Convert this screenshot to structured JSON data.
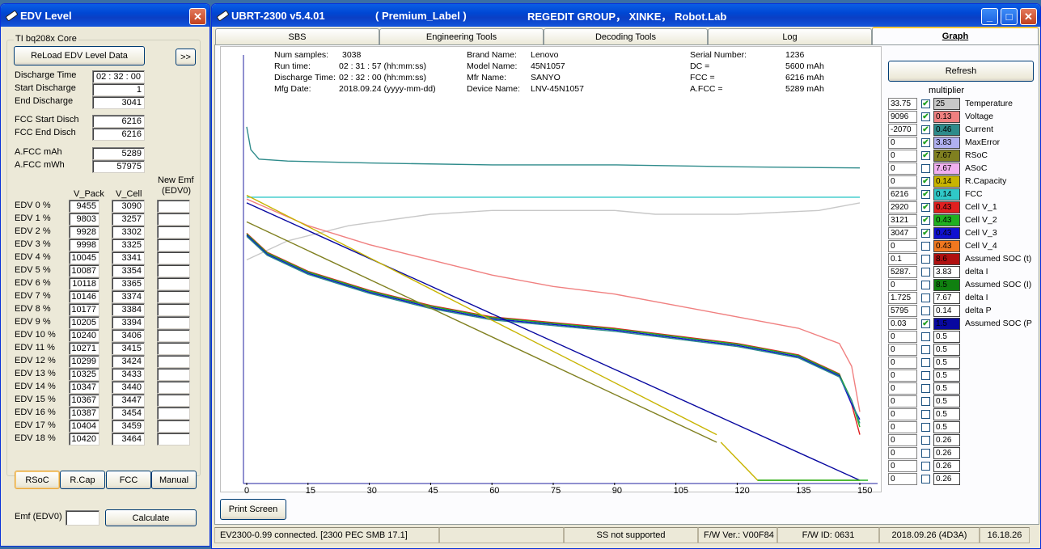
{
  "edv_window": {
    "title": "EDV Level",
    "group_title": "TI bq208x Core",
    "reload_button": "ReLoad EDV Level Data",
    "more_button": ">>",
    "fields": [
      {
        "label": "Discharge Time",
        "value": "02 : 32 : 00"
      },
      {
        "label": "Start Discharge",
        "value": "1"
      },
      {
        "label": "End  Discharge",
        "value": "3041"
      },
      {
        "label": "FCC Start Disch",
        "value": "6216"
      },
      {
        "label": "FCC End  Disch",
        "value": "6216"
      },
      {
        "label": "A.FCC mAh",
        "value": "5289"
      },
      {
        "label": "A.FCC mWh",
        "value": "57975"
      }
    ],
    "col_vpack": "V_Pack",
    "col_vcell": "V_Cell",
    "col_newemf": "New  Emf",
    "col_newemf2": "(EDV0)",
    "edv_rows": [
      {
        "label": "EDV   0 %",
        "vpack": "9455",
        "vcell": "3090"
      },
      {
        "label": "EDV   1 %",
        "vpack": "9803",
        "vcell": "3257"
      },
      {
        "label": "EDV   2 %",
        "vpack": "9928",
        "vcell": "3302"
      },
      {
        "label": "EDV   3 %",
        "vpack": "9998",
        "vcell": "3325"
      },
      {
        "label": "EDV   4 %",
        "vpack": "10045",
        "vcell": "3341"
      },
      {
        "label": "EDV   5 %",
        "vpack": "10087",
        "vcell": "3354"
      },
      {
        "label": "EDV   6 %",
        "vpack": "10118",
        "vcell": "3365"
      },
      {
        "label": "EDV   7 %",
        "vpack": "10146",
        "vcell": "3374"
      },
      {
        "label": "EDV   8 %",
        "vpack": "10177",
        "vcell": "3384"
      },
      {
        "label": "EDV   9 %",
        "vpack": "10205",
        "vcell": "3394"
      },
      {
        "label": "EDV 10 %",
        "vpack": "10240",
        "vcell": "3406"
      },
      {
        "label": "EDV 11 %",
        "vpack": "10271",
        "vcell": "3415"
      },
      {
        "label": "EDV 12 %",
        "vpack": "10299",
        "vcell": "3424"
      },
      {
        "label": "EDV 13 %",
        "vpack": "10325",
        "vcell": "3433"
      },
      {
        "label": "EDV 14 %",
        "vpack": "10347",
        "vcell": "3440"
      },
      {
        "label": "EDV 15 %",
        "vpack": "10367",
        "vcell": "3447"
      },
      {
        "label": "EDV 16 %",
        "vpack": "10387",
        "vcell": "3454"
      },
      {
        "label": "EDV 17 %",
        "vpack": "10404",
        "vcell": "3459"
      },
      {
        "label": "EDV 18 %",
        "vpack": "10420",
        "vcell": "3464"
      }
    ],
    "mode_buttons": [
      "RSoC",
      "R.Cap",
      "FCC",
      "Manual"
    ],
    "emf_label": "Emf (EDV0)",
    "emf_value": "",
    "calculate_button": "Calculate"
  },
  "main_window": {
    "title_app": "UBRT-2300 v5.4.01",
    "title_label": "( Premium_Label )",
    "title_group": "REGEDIT GROUP， XINKE， Robot.Lab",
    "tabs": [
      "SBS",
      "Engineering Tools",
      "Decoding Tools",
      "Log",
      "Graph"
    ],
    "active_tab": "Graph",
    "info": {
      "num_samples_label": "Num samples:",
      "num_samples": "3038",
      "run_time_label": "Run time:",
      "run_time": "02 : 31 : 57 (hh:mm:ss)",
      "discharge_time_label": "Discharge Time:",
      "discharge_time": "02 : 32 : 00 (hh:mm:ss)",
      "mfg_date_label": "Mfg Date:",
      "mfg_date": "2018.09.24 (yyyy-mm-dd)",
      "brand_name_label": "Brand Name:",
      "brand_name": "Lenovo",
      "model_name_label": "Model Name:",
      "model_name": "45N1057",
      "mfr_name_label": "Mfr Name:",
      "mfr_name": "SANYO",
      "device_name_label": "Device Name:",
      "device_name": "LNV-45N1057",
      "serial_label": "Serial Number:",
      "serial": "1236",
      "dc_label": "DC =",
      "dc": "5600 mAh",
      "fcc_label": "FCC =",
      "fcc": "6216 mAh",
      "afcc_label": "A.FCC =",
      "afcc": "5289 mAh"
    },
    "refresh_button": "Refresh",
    "multiplier_label": "multiplier",
    "print_screen_button": "Print Screen",
    "legend": [
      {
        "value": "33.75",
        "checked": true,
        "mult": "25",
        "color": "#c8c8c8",
        "name": "Temperature"
      },
      {
        "value": "9096",
        "checked": true,
        "mult": "0.13",
        "color": "#f08080",
        "name": "Voltage"
      },
      {
        "value": "-2070",
        "checked": true,
        "mult": "0.46",
        "color": "#2e8b8b",
        "name": "Current"
      },
      {
        "value": "0",
        "checked": true,
        "mult": "3.83",
        "color": "#b0b0f0",
        "name": "MaxError"
      },
      {
        "value": "0",
        "checked": true,
        "mult": "7.67",
        "color": "#808020",
        "name": "RSoC"
      },
      {
        "value": "0",
        "checked": false,
        "mult": "7.67",
        "color": "#f0b0f0",
        "name": "ASoC"
      },
      {
        "value": "0",
        "checked": true,
        "mult": "0.14",
        "color": "#c8b400",
        "name": "R.Capacity"
      },
      {
        "value": "6216",
        "checked": true,
        "mult": "0.14",
        "color": "#30c8c8",
        "name": "FCC"
      },
      {
        "value": "2920",
        "checked": true,
        "mult": "0.43",
        "color": "#e02020",
        "name": "Cell V_1"
      },
      {
        "value": "3121",
        "checked": true,
        "mult": "0.43",
        "color": "#20b020",
        "name": "Cell V_2"
      },
      {
        "value": "3047",
        "checked": true,
        "mult": "0.43",
        "color": "#1010d0",
        "name": "Cell V_3"
      },
      {
        "value": "0",
        "checked": false,
        "mult": "0.43",
        "color": "#f07820",
        "name": "Cell V_4"
      },
      {
        "value": "0.1",
        "checked": false,
        "mult": "8.6",
        "color": "#b01010",
        "name": "Assumed SOC (t)"
      },
      {
        "value": "5287.",
        "checked": false,
        "mult": "3.83",
        "color": "#ffffff",
        "name": "delta I"
      },
      {
        "value": "0",
        "checked": false,
        "mult": "8.5",
        "color": "#108010",
        "name": "Assumed SOC (I)"
      },
      {
        "value": "1.725",
        "checked": false,
        "mult": "7.67",
        "color": "#ffffff",
        "name": "delta I"
      },
      {
        "value": "5795",
        "checked": false,
        "mult": "0.14",
        "color": "#ffffff",
        "name": "delta P"
      },
      {
        "value": "0.03",
        "checked": true,
        "mult": "1.5",
        "color": "#0808a0",
        "name": "Assumed SOC (P"
      },
      {
        "value": "0",
        "checked": false,
        "mult": "0.5",
        "color": "#ffffff",
        "name": ""
      },
      {
        "value": "0",
        "checked": false,
        "mult": "0.5",
        "color": "#ffffff",
        "name": ""
      },
      {
        "value": "0",
        "checked": false,
        "mult": "0.5",
        "color": "#ffffff",
        "name": ""
      },
      {
        "value": "0",
        "checked": false,
        "mult": "0.5",
        "color": "#ffffff",
        "name": ""
      },
      {
        "value": "0",
        "checked": false,
        "mult": "0.5",
        "color": "#ffffff",
        "name": ""
      },
      {
        "value": "0",
        "checked": false,
        "mult": "0.5",
        "color": "#ffffff",
        "name": ""
      },
      {
        "value": "0",
        "checked": false,
        "mult": "0.5",
        "color": "#ffffff",
        "name": ""
      },
      {
        "value": "0",
        "checked": false,
        "mult": "0.5",
        "color": "#ffffff",
        "name": ""
      },
      {
        "value": "0",
        "checked": false,
        "mult": "0.26",
        "color": "#ffffff",
        "name": ""
      },
      {
        "value": "0",
        "checked": false,
        "mult": "0.26",
        "color": "#ffffff",
        "name": ""
      },
      {
        "value": "0",
        "checked": false,
        "mult": "0.26",
        "color": "#ffffff",
        "name": ""
      },
      {
        "value": "0",
        "checked": false,
        "mult": "0.26",
        "color": "#ffffff",
        "name": ""
      }
    ],
    "status": [
      "EV2300-0.99 connected. [2300  PEC  SMB  17.1]",
      "",
      "SS not supported",
      "F/W Ver.: V00F84",
      "F/W ID: 0631",
      "2018.09.26  (4D3A)",
      "16.18.26"
    ]
  },
  "chart_data": {
    "type": "line",
    "x_ticks": [
      "0",
      "15",
      "30",
      "45",
      "60",
      "75",
      "90",
      "105",
      "120",
      "135",
      "150"
    ],
    "xlim": [
      0,
      150
    ],
    "series": [
      {
        "color": "#2e8b8b",
        "x": [
          0,
          1,
          3,
          10,
          30,
          60,
          90,
          120,
          150
        ],
        "y": [
          0.07,
          0.13,
          0.155,
          0.16,
          0.165,
          0.17,
          0.17,
          0.175,
          0.178
        ]
      },
      {
        "color": "#30c8c8",
        "x": [
          0,
          150
        ],
        "y": [
          0.255,
          0.255
        ]
      },
      {
        "color": "#c8c8c8",
        "x": [
          0,
          10,
          25,
          45,
          60,
          90,
          100,
          120,
          140,
          150
        ],
        "y": [
          0.42,
          0.37,
          0.33,
          0.3,
          0.29,
          0.29,
          0.3,
          0.3,
          0.29,
          0.27
        ]
      },
      {
        "color": "#f08080",
        "x": [
          0,
          15,
          30,
          45,
          60,
          75,
          90,
          105,
          120,
          135,
          145,
          148,
          150
        ],
        "y": [
          0.26,
          0.33,
          0.38,
          0.42,
          0.46,
          0.49,
          0.51,
          0.54,
          0.57,
          0.6,
          0.64,
          0.7,
          0.82
        ]
      },
      {
        "color": "#e02020",
        "x": [
          0,
          5,
          15,
          30,
          45,
          60,
          75,
          90,
          105,
          120,
          135,
          145,
          148,
          150
        ],
        "y": [
          0.35,
          0.4,
          0.45,
          0.5,
          0.54,
          0.57,
          0.585,
          0.6,
          0.62,
          0.64,
          0.67,
          0.72,
          0.8,
          0.88
        ]
      },
      {
        "color": "#20b020",
        "x": [
          0,
          5,
          15,
          30,
          45,
          60,
          75,
          90,
          105,
          120,
          135,
          145,
          148,
          150
        ],
        "y": [
          0.352,
          0.402,
          0.452,
          0.502,
          0.542,
          0.572,
          0.587,
          0.602,
          0.622,
          0.642,
          0.672,
          0.722,
          0.79,
          0.86
        ]
      },
      {
        "color": "#1010d0",
        "x": [
          0,
          5,
          15,
          30,
          45,
          60,
          75,
          90,
          105,
          120,
          135,
          145,
          148,
          150
        ],
        "y": [
          0.355,
          0.405,
          0.455,
          0.505,
          0.545,
          0.575,
          0.59,
          0.605,
          0.625,
          0.645,
          0.675,
          0.725,
          0.8,
          0.84
        ]
      },
      {
        "color": "#2e8b8b",
        "x": [
          0,
          5,
          15,
          30,
          45,
          60,
          75,
          90,
          105,
          120,
          135,
          145,
          148,
          150
        ],
        "y": [
          0.358,
          0.408,
          0.458,
          0.508,
          0.548,
          0.578,
          0.593,
          0.608,
          0.628,
          0.648,
          0.678,
          0.728,
          0.79,
          0.85
        ]
      },
      {
        "color": "#0808a0",
        "x": [
          0,
          150
        ],
        "y": [
          0.27,
          1.0
        ]
      },
      {
        "color": "#c8b400",
        "x": [
          0,
          115
        ],
        "y": [
          0.25,
          0.88
        ]
      },
      {
        "color": "#808020",
        "x": [
          0,
          115
        ],
        "y": [
          0.32,
          0.9
        ]
      },
      {
        "color": "#c8b400",
        "x": [
          116,
          125,
          150
        ],
        "y": [
          0.9,
          1.0,
          1.0
        ]
      },
      {
        "color": "#20b020",
        "x": [
          125,
          152
        ],
        "y": [
          1.0,
          1.0
        ]
      }
    ]
  }
}
